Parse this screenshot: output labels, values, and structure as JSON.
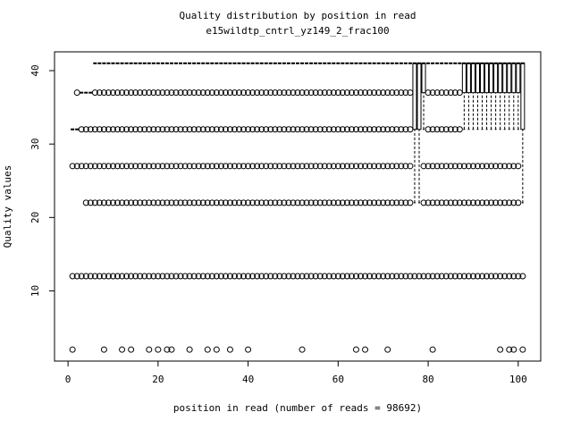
{
  "chart_data": {
    "type": "boxplot",
    "title": "Quality distribution by position in read",
    "subtitle": "e15wildtp_cntrl_yz149_2_frac100",
    "x_label": "position in read (number of reads = 98692)",
    "y_label": "Quality values",
    "xlim": [
      -3,
      105
    ],
    "ylim": [
      0.44,
      42.56
    ],
    "xticks": [
      0,
      20,
      40,
      60,
      80,
      100
    ],
    "yticks": [
      10,
      20,
      30,
      40
    ],
    "color": "#000000",
    "x": [
      1,
      2,
      3,
      4,
      5,
      6,
      7,
      8,
      9,
      10,
      11,
      12,
      13,
      14,
      15,
      16,
      17,
      18,
      19,
      20,
      21,
      22,
      23,
      24,
      25,
      26,
      27,
      28,
      29,
      30,
      31,
      32,
      33,
      34,
      35,
      36,
      37,
      38,
      39,
      40,
      41,
      42,
      43,
      44,
      45,
      46,
      47,
      48,
      49,
      50,
      51,
      52,
      53,
      54,
      55,
      56,
      57,
      58,
      59,
      60,
      61,
      62,
      63,
      64,
      65,
      66,
      67,
      68,
      69,
      70,
      71,
      72,
      73,
      74,
      75,
      76,
      77,
      78,
      79,
      80,
      81,
      82,
      83,
      84,
      85,
      86,
      87,
      88,
      89,
      90,
      91,
      92,
      93,
      94,
      95,
      96,
      97,
      98,
      99,
      100,
      101
    ],
    "stats": [
      [
        32,
        32,
        32,
        32,
        32
      ],
      [
        32,
        32,
        32,
        32,
        32
      ],
      [
        37,
        37,
        37,
        37,
        37
      ],
      [
        37,
        37,
        37,
        37,
        37
      ],
      [
        37,
        37,
        37,
        37,
        37
      ],
      [
        41,
        41,
        41,
        41,
        41
      ],
      [
        41,
        41,
        41,
        41,
        41
      ],
      [
        41,
        41,
        41,
        41,
        41
      ],
      [
        41,
        41,
        41,
        41,
        41
      ],
      [
        41,
        41,
        41,
        41,
        41
      ],
      [
        41,
        41,
        41,
        41,
        41
      ],
      [
        41,
        41,
        41,
        41,
        41
      ],
      [
        41,
        41,
        41,
        41,
        41
      ],
      [
        41,
        41,
        41,
        41,
        41
      ],
      [
        41,
        41,
        41,
        41,
        41
      ],
      [
        41,
        41,
        41,
        41,
        41
      ],
      [
        41,
        41,
        41,
        41,
        41
      ],
      [
        41,
        41,
        41,
        41,
        41
      ],
      [
        41,
        41,
        41,
        41,
        41
      ],
      [
        41,
        41,
        41,
        41,
        41
      ],
      [
        41,
        41,
        41,
        41,
        41
      ],
      [
        41,
        41,
        41,
        41,
        41
      ],
      [
        41,
        41,
        41,
        41,
        41
      ],
      [
        41,
        41,
        41,
        41,
        41
      ],
      [
        41,
        41,
        41,
        41,
        41
      ],
      [
        41,
        41,
        41,
        41,
        41
      ],
      [
        41,
        41,
        41,
        41,
        41
      ],
      [
        41,
        41,
        41,
        41,
        41
      ],
      [
        41,
        41,
        41,
        41,
        41
      ],
      [
        41,
        41,
        41,
        41,
        41
      ],
      [
        41,
        41,
        41,
        41,
        41
      ],
      [
        41,
        41,
        41,
        41,
        41
      ],
      [
        41,
        41,
        41,
        41,
        41
      ],
      [
        41,
        41,
        41,
        41,
        41
      ],
      [
        41,
        41,
        41,
        41,
        41
      ],
      [
        41,
        41,
        41,
        41,
        41
      ],
      [
        41,
        41,
        41,
        41,
        41
      ],
      [
        41,
        41,
        41,
        41,
        41
      ],
      [
        41,
        41,
        41,
        41,
        41
      ],
      [
        41,
        41,
        41,
        41,
        41
      ],
      [
        41,
        41,
        41,
        41,
        41
      ],
      [
        41,
        41,
        41,
        41,
        41
      ],
      [
        41,
        41,
        41,
        41,
        41
      ],
      [
        41,
        41,
        41,
        41,
        41
      ],
      [
        41,
        41,
        41,
        41,
        41
      ],
      [
        41,
        41,
        41,
        41,
        41
      ],
      [
        41,
        41,
        41,
        41,
        41
      ],
      [
        41,
        41,
        41,
        41,
        41
      ],
      [
        41,
        41,
        41,
        41,
        41
      ],
      [
        41,
        41,
        41,
        41,
        41
      ],
      [
        41,
        41,
        41,
        41,
        41
      ],
      [
        41,
        41,
        41,
        41,
        41
      ],
      [
        41,
        41,
        41,
        41,
        41
      ],
      [
        41,
        41,
        41,
        41,
        41
      ],
      [
        41,
        41,
        41,
        41,
        41
      ],
      [
        41,
        41,
        41,
        41,
        41
      ],
      [
        41,
        41,
        41,
        41,
        41
      ],
      [
        41,
        41,
        41,
        41,
        41
      ],
      [
        41,
        41,
        41,
        41,
        41
      ],
      [
        41,
        41,
        41,
        41,
        41
      ],
      [
        41,
        41,
        41,
        41,
        41
      ],
      [
        41,
        41,
        41,
        41,
        41
      ],
      [
        41,
        41,
        41,
        41,
        41
      ],
      [
        41,
        41,
        41,
        41,
        41
      ],
      [
        41,
        41,
        41,
        41,
        41
      ],
      [
        41,
        41,
        41,
        41,
        41
      ],
      [
        41,
        41,
        41,
        41,
        41
      ],
      [
        41,
        41,
        41,
        41,
        41
      ],
      [
        41,
        41,
        41,
        41,
        41
      ],
      [
        41,
        41,
        41,
        41,
        41
      ],
      [
        41,
        41,
        41,
        41,
        41
      ],
      [
        41,
        41,
        41,
        41,
        41
      ],
      [
        41,
        41,
        41,
        41,
        41
      ],
      [
        41,
        41,
        41,
        41,
        41
      ],
      [
        41,
        41,
        41,
        41,
        41
      ],
      [
        41,
        41,
        41,
        41,
        41
      ],
      [
        22,
        32,
        41,
        41,
        41
      ],
      [
        22,
        32,
        41,
        41,
        41
      ],
      [
        32,
        37,
        41,
        41,
        41
      ],
      [
        41,
        41,
        41,
        41,
        41
      ],
      [
        41,
        41,
        41,
        41,
        41
      ],
      [
        41,
        41,
        41,
        41,
        41
      ],
      [
        41,
        41,
        41,
        41,
        41
      ],
      [
        41,
        41,
        41,
        41,
        41
      ],
      [
        41,
        41,
        41,
        41,
        41
      ],
      [
        41,
        41,
        41,
        41,
        41
      ],
      [
        41,
        41,
        41,
        41,
        41
      ],
      [
        32,
        37,
        41,
        41,
        41
      ],
      [
        32,
        37,
        41,
        41,
        41
      ],
      [
        32,
        37,
        41,
        41,
        41
      ],
      [
        32,
        37,
        41,
        41,
        41
      ],
      [
        32,
        37,
        41,
        41,
        41
      ],
      [
        32,
        37,
        41,
        41,
        41
      ],
      [
        32,
        37,
        41,
        41,
        41
      ],
      [
        32,
        37,
        41,
        41,
        41
      ],
      [
        32,
        37,
        41,
        41,
        41
      ],
      [
        32,
        37,
        41,
        41,
        41
      ],
      [
        32,
        37,
        41,
        41,
        41
      ],
      [
        32,
        37,
        41,
        41,
        41
      ],
      [
        32,
        37,
        41,
        41,
        41
      ],
      [
        22,
        32,
        41,
        41,
        41
      ]
    ],
    "outliers": [
      [
        2,
        12,
        27
      ],
      [
        12,
        27,
        37
      ],
      [
        12,
        27,
        32
      ],
      [
        12,
        22,
        27,
        32
      ],
      [
        12,
        22,
        27,
        32
      ],
      [
        12,
        22,
        27,
        32,
        37
      ],
      [
        12,
        22,
        27,
        32,
        37
      ],
      [
        2,
        12,
        22,
        27,
        32,
        37
      ],
      [
        12,
        22,
        27,
        32,
        37
      ],
      [
        12,
        22,
        27,
        32,
        37
      ],
      [
        12,
        22,
        27,
        32,
        37
      ],
      [
        2,
        12,
        22,
        27,
        32,
        37
      ],
      [
        12,
        22,
        27,
        32,
        37
      ],
      [
        2,
        12,
        22,
        27,
        32,
        37
      ],
      [
        12,
        22,
        27,
        32,
        37
      ],
      [
        12,
        22,
        27,
        32,
        37
      ],
      [
        12,
        22,
        27,
        32,
        37
      ],
      [
        2,
        12,
        22,
        27,
        32,
        37
      ],
      [
        12,
        22,
        27,
        32,
        37
      ],
      [
        2,
        12,
        22,
        27,
        32,
        37
      ],
      [
        12,
        22,
        27,
        32,
        37
      ],
      [
        2,
        12,
        22,
        27,
        32,
        37
      ],
      [
        2,
        12,
        22,
        27,
        32,
        37
      ],
      [
        12,
        22,
        27,
        32,
        37
      ],
      [
        12,
        22,
        27,
        32,
        37
      ],
      [
        12,
        22,
        27,
        32,
        37
      ],
      [
        2,
        12,
        22,
        27,
        32,
        37
      ],
      [
        12,
        22,
        27,
        32,
        37
      ],
      [
        12,
        22,
        27,
        32,
        37
      ],
      [
        12,
        22,
        27,
        32,
        37
      ],
      [
        2,
        12,
        22,
        27,
        32,
        37
      ],
      [
        12,
        22,
        27,
        32,
        37
      ],
      [
        2,
        12,
        22,
        27,
        32,
        37
      ],
      [
        12,
        22,
        27,
        32,
        37
      ],
      [
        12,
        22,
        27,
        32,
        37
      ],
      [
        2,
        12,
        22,
        27,
        32,
        37
      ],
      [
        12,
        22,
        27,
        32,
        37
      ],
      [
        12,
        22,
        27,
        32,
        37
      ],
      [
        12,
        22,
        27,
        32,
        37
      ],
      [
        2,
        12,
        22,
        27,
        32,
        37
      ],
      [
        12,
        22,
        27,
        32,
        37
      ],
      [
        12,
        22,
        27,
        32,
        37
      ],
      [
        12,
        22,
        27,
        32,
        37
      ],
      [
        12,
        22,
        27,
        32,
        37
      ],
      [
        12,
        22,
        27,
        32,
        37
      ],
      [
        12,
        22,
        27,
        32,
        37
      ],
      [
        12,
        22,
        27,
        32,
        37
      ],
      [
        12,
        22,
        27,
        32,
        37
      ],
      [
        12,
        22,
        27,
        32,
        37
      ],
      [
        12,
        22,
        27,
        32,
        37
      ],
      [
        12,
        22,
        27,
        32,
        37
      ],
      [
        2,
        12,
        22,
        27,
        32,
        37
      ],
      [
        12,
        22,
        27,
        32,
        37
      ],
      [
        12,
        22,
        27,
        32,
        37
      ],
      [
        12,
        22,
        27,
        32,
        37
      ],
      [
        12,
        22,
        27,
        32,
        37
      ],
      [
        12,
        22,
        27,
        32,
        37
      ],
      [
        12,
        22,
        27,
        32,
        37
      ],
      [
        12,
        22,
        27,
        32,
        37
      ],
      [
        12,
        22,
        27,
        32,
        37
      ],
      [
        12,
        22,
        27,
        32,
        37
      ],
      [
        12,
        22,
        27,
        32,
        37
      ],
      [
        12,
        22,
        27,
        32,
        37
      ],
      [
        2,
        12,
        22,
        27,
        32,
        37
      ],
      [
        12,
        22,
        27,
        32,
        37
      ],
      [
        2,
        12,
        22,
        27,
        32,
        37
      ],
      [
        12,
        22,
        27,
        32,
        37
      ],
      [
        12,
        22,
        27,
        32,
        37
      ],
      [
        12,
        22,
        27,
        32,
        37
      ],
      [
        12,
        22,
        27,
        32,
        37
      ],
      [
        2,
        12,
        22,
        27,
        32,
        37
      ],
      [
        12,
        22,
        27,
        32,
        37
      ],
      [
        12,
        22,
        27,
        32,
        37
      ],
      [
        12,
        22,
        27,
        32,
        37
      ],
      [
        12,
        22,
        27,
        32,
        37
      ],
      [
        12,
        22,
        27,
        32,
        37
      ],
      [
        12
      ],
      [
        12
      ],
      [
        12,
        22,
        27
      ],
      [
        12,
        22,
        27,
        32,
        37
      ],
      [
        2,
        12,
        22,
        27,
        32,
        37
      ],
      [
        12,
        22,
        27,
        32,
        37
      ],
      [
        12,
        22,
        27,
        32,
        37
      ],
      [
        12,
        22,
        27,
        32,
        37
      ],
      [
        12,
        22,
        27,
        32,
        37
      ],
      [
        12,
        22,
        27,
        32,
        37
      ],
      [
        12,
        22,
        27,
        32,
        37
      ],
      [
        12,
        22,
        27
      ],
      [
        12,
        22,
        27
      ],
      [
        12,
        22,
        27
      ],
      [
        12,
        22,
        27
      ],
      [
        12,
        22,
        27
      ],
      [
        12,
        22,
        27
      ],
      [
        12,
        22,
        27
      ],
      [
        12,
        22,
        27
      ],
      [
        2,
        12,
        22,
        27
      ],
      [
        12,
        22,
        27
      ],
      [
        2,
        12,
        22,
        27
      ],
      [
        2,
        12,
        22,
        27
      ],
      [
        12,
        22,
        27
      ],
      [
        2,
        12
      ]
    ]
  }
}
